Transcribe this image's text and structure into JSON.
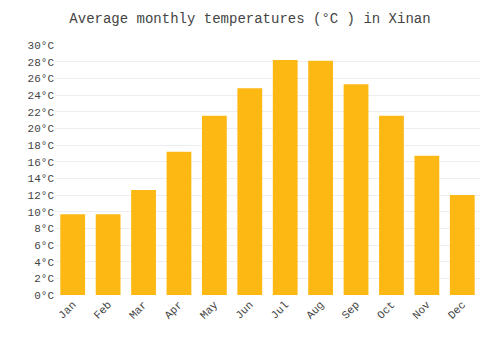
{
  "chart_data": {
    "type": "bar",
    "title": "Average monthly temperatures (°C ) in Xinan",
    "categories": [
      "Jan",
      "Feb",
      "Mar",
      "Apr",
      "May",
      "Jun",
      "Jul",
      "Aug",
      "Sep",
      "Oct",
      "Nov",
      "Dec"
    ],
    "values": [
      9.7,
      9.7,
      12.6,
      17.2,
      21.5,
      24.8,
      28.2,
      28.1,
      25.3,
      21.5,
      16.7,
      12.0
    ],
    "color": "#FDB813",
    "ylim": [
      0,
      30
    ],
    "yticks": [
      {
        "value": 0,
        "label": "0°C"
      },
      {
        "value": 2,
        "label": "2°C"
      },
      {
        "value": 4,
        "label": "4°C"
      },
      {
        "value": 6,
        "label": "6°C"
      },
      {
        "value": 8,
        "label": "8°C"
      },
      {
        "value": 10,
        "label": "10°C"
      },
      {
        "value": 12,
        "label": "12°C"
      },
      {
        "value": 14,
        "label": "14°C"
      },
      {
        "value": 16,
        "label": "16°C"
      },
      {
        "value": 18,
        "label": "18°C"
      },
      {
        "value": 20,
        "label": "20°C"
      },
      {
        "value": 22,
        "label": "22°C"
      },
      {
        "value": 24,
        "label": "24°C"
      },
      {
        "value": 26,
        "label": "26°C"
      },
      {
        "value": 28,
        "label": "28°C"
      },
      {
        "value": 30,
        "label": "30°C"
      }
    ],
    "grid": true
  }
}
